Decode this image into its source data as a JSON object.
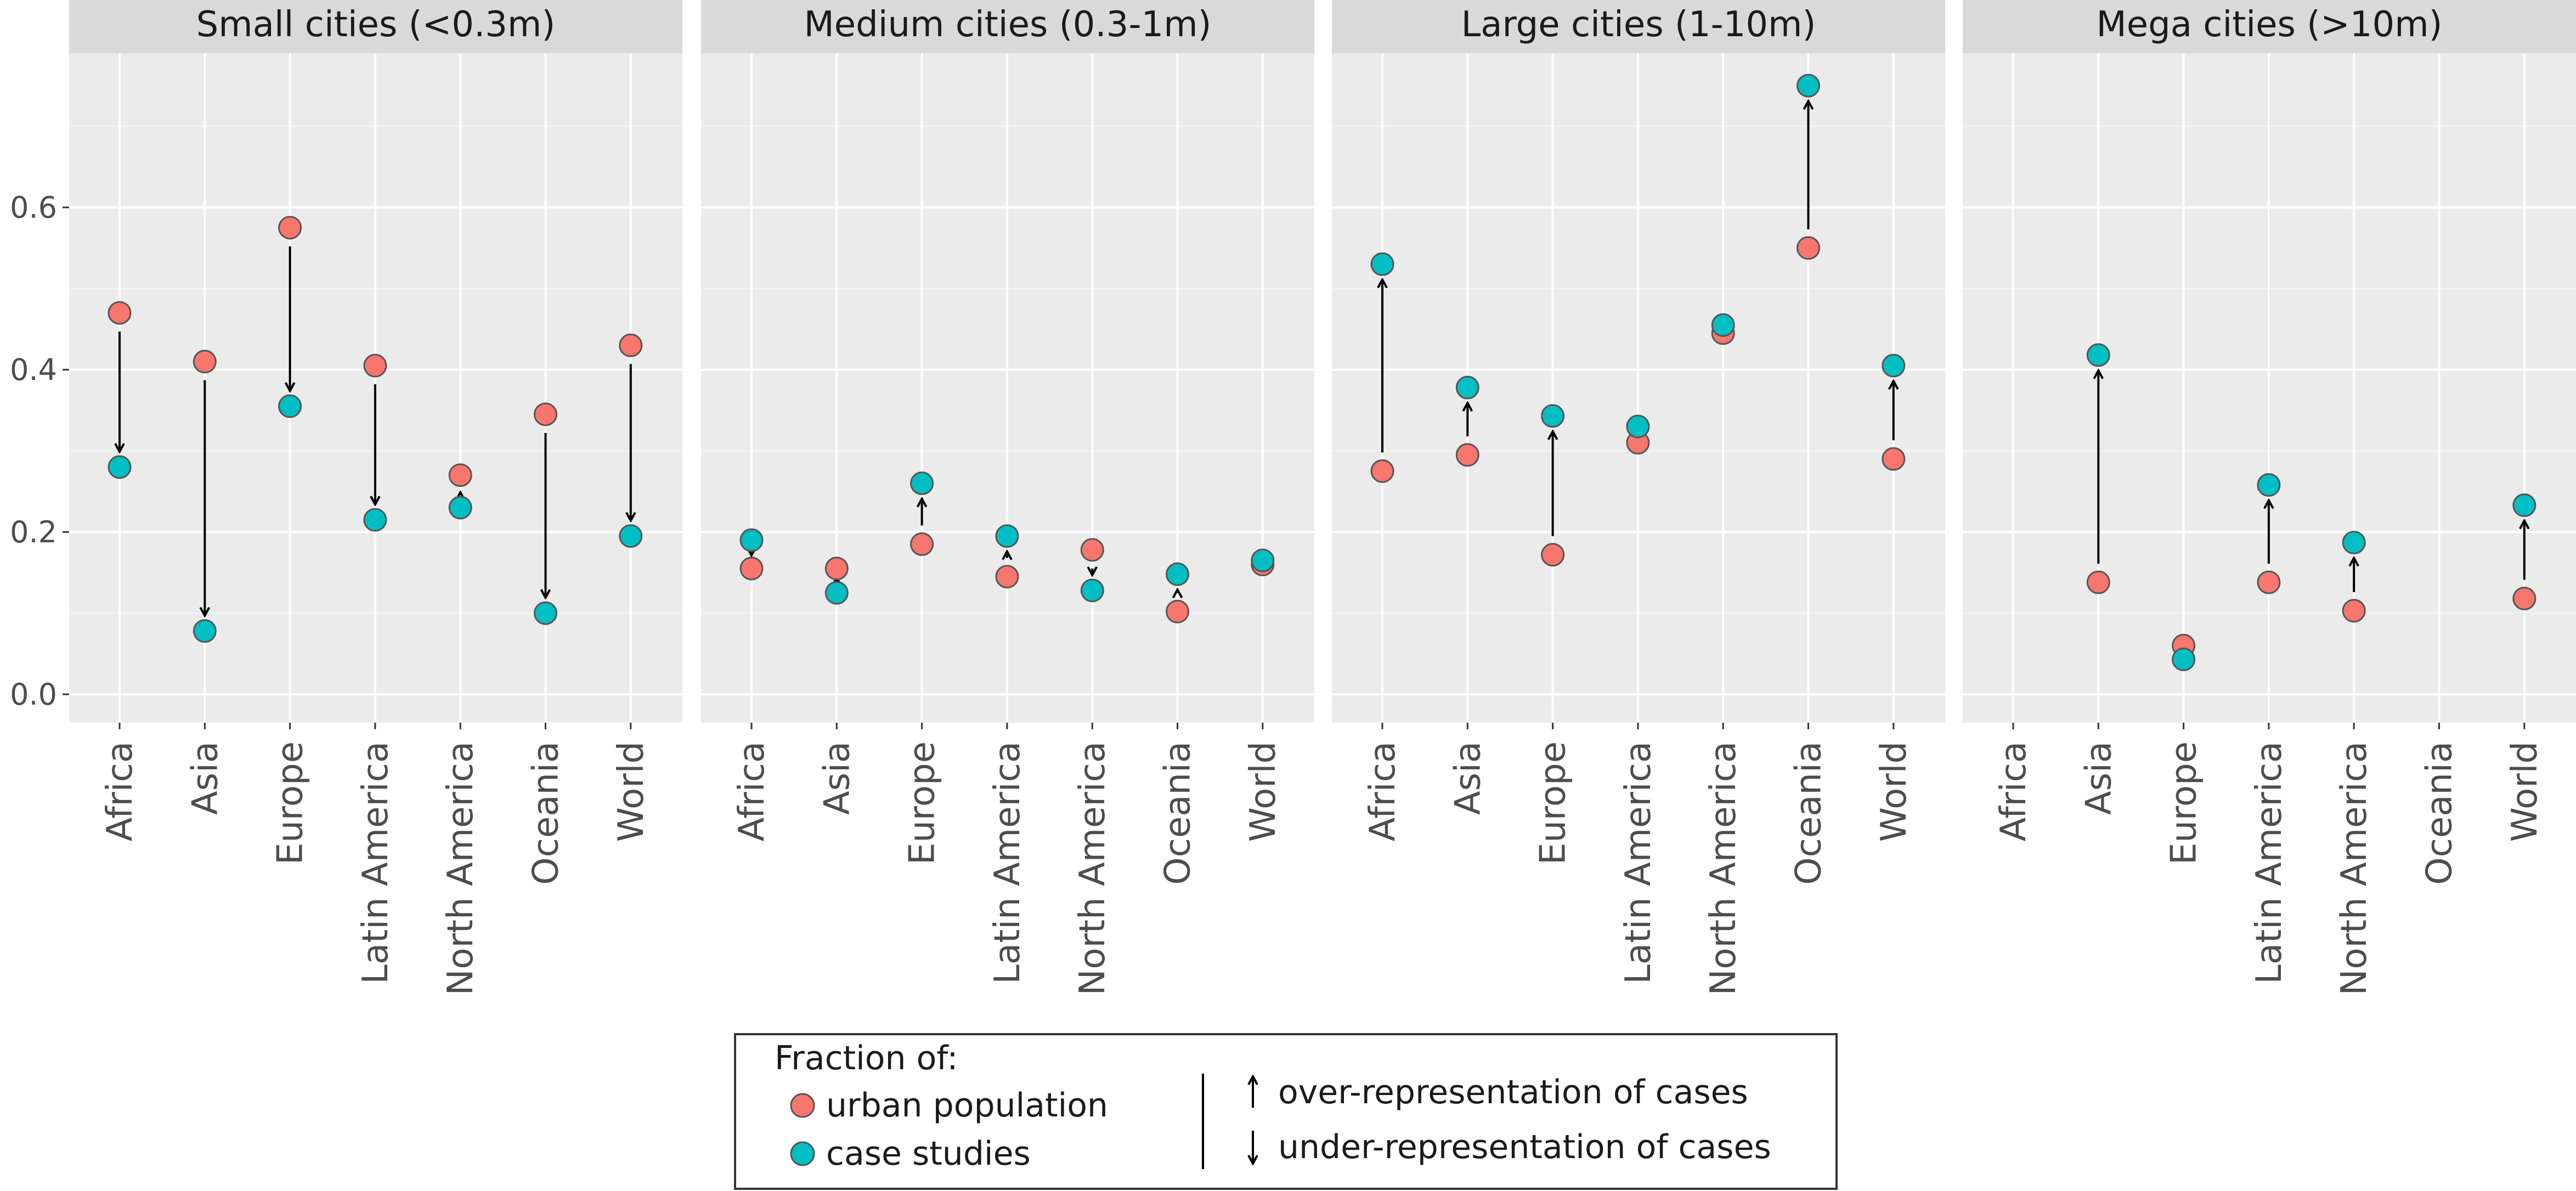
{
  "chart_data": {
    "type": "scatter",
    "facets": [
      {
        "title": "Small cities (<0.3m)",
        "urban_population": [
          0.47,
          0.41,
          0.575,
          0.405,
          0.27,
          0.345,
          0.43
        ],
        "case_studies": [
          0.28,
          0.078,
          0.355,
          0.215,
          0.23,
          0.1,
          0.195
        ]
      },
      {
        "title": "Medium cities (0.3-1m)",
        "urban_population": [
          0.155,
          0.155,
          0.185,
          0.145,
          0.178,
          0.102,
          0.16
        ],
        "case_studies": [
          0.19,
          0.125,
          0.26,
          0.195,
          0.128,
          0.148,
          0.165
        ]
      },
      {
        "title": "Large cities (1-10m)",
        "urban_population": [
          0.275,
          0.295,
          0.172,
          0.31,
          0.445,
          0.55,
          0.29
        ],
        "case_studies": [
          0.53,
          0.378,
          0.343,
          0.33,
          0.455,
          0.75,
          0.405
        ]
      },
      {
        "title": "Mega cities (>10m)",
        "urban_population": [
          null,
          0.138,
          0.06,
          0.138,
          0.103,
          null,
          0.118
        ],
        "case_studies": [
          null,
          0.418,
          0.043,
          0.258,
          0.187,
          null,
          0.233
        ]
      }
    ],
    "categories": [
      "Africa",
      "Asia",
      "Europe",
      "Latin America",
      "North America",
      "Oceania",
      "World"
    ],
    "y_ticks": [
      "0.0",
      "0.2",
      "0.4",
      "0.6"
    ],
    "ylim": [
      -0.035,
      0.79
    ],
    "series": [
      {
        "name": "urban population",
        "color": "#F8766D"
      },
      {
        "name": "case studies",
        "color": "#00BFC4"
      }
    ],
    "legend": {
      "title": "Fraction of:",
      "placement": "bottom",
      "arrow_items": [
        {
          "icon": "arrow-up-icon",
          "label": "over-representation of cases"
        },
        {
          "icon": "arrow-down-icon",
          "label": "under-representation of cases"
        }
      ]
    },
    "grid": true
  }
}
